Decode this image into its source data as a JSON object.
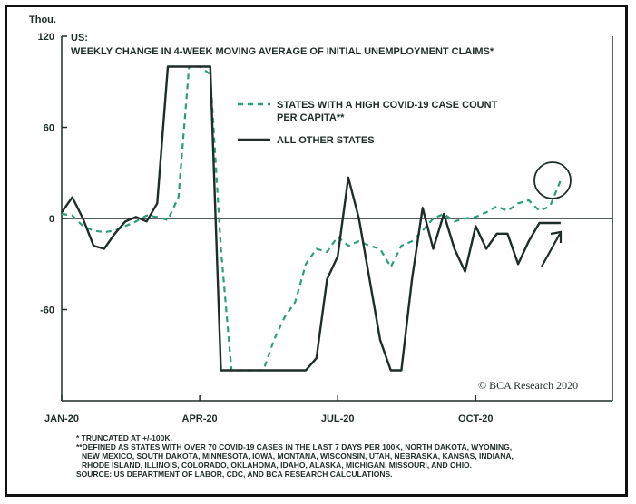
{
  "chart_data": {
    "type": "line",
    "title": "US:",
    "subtitle": "WEEKLY CHANGE IN 4-WEEK MOVING AVERAGE OF INITIAL UNEMPLOYMENT CLAIMS*",
    "ylabel": "Thou.",
    "ylim": [
      -120,
      120
    ],
    "yticks": [
      120,
      60,
      0,
      -60
    ],
    "ytick_labels": [
      "120",
      "60",
      "0",
      "-60"
    ],
    "xlim": [
      0,
      49
    ],
    "xticks": [
      {
        "x": 0,
        "label": "JAN-20"
      },
      {
        "x": 13,
        "label": "APR-20"
      },
      {
        "x": 26,
        "label": "JUL-20"
      },
      {
        "x": 39,
        "label": "OCT-20"
      }
    ],
    "legend_position": "top-right",
    "series": [
      {
        "name": "STATES WITH A HIGH COVID-19 CASE COUNT PER CAPITA**",
        "style": "dashed",
        "color": "#2a9d7c",
        "x": [
          0,
          1,
          2,
          3,
          4,
          5,
          6,
          7,
          8,
          9,
          10,
          11,
          12,
          13,
          14,
          15,
          16,
          17,
          18,
          19,
          20,
          21,
          22,
          23,
          24,
          25,
          26,
          27,
          28,
          29,
          30,
          31,
          32,
          33,
          34,
          35,
          36,
          37,
          38,
          39,
          40,
          41,
          42,
          43,
          44,
          45,
          46,
          47
        ],
        "values": [
          3,
          2,
          -5,
          -8,
          -9,
          -8,
          -5,
          -2,
          2,
          1,
          -1,
          14,
          100,
          100,
          95,
          -20,
          -100,
          -100,
          -100,
          -100,
          -80,
          -65,
          -55,
          -30,
          -20,
          -22,
          -12,
          -18,
          -15,
          -18,
          -20,
          -32,
          -18,
          -15,
          -8,
          0,
          3,
          -2,
          0,
          1,
          4,
          8,
          5,
          10,
          12,
          5,
          8,
          25
        ]
      },
      {
        "name": "ALL OTHER STATES",
        "style": "solid",
        "color": "#1f2d2a",
        "x": [
          0,
          1,
          2,
          3,
          4,
          5,
          6,
          7,
          8,
          9,
          10,
          11,
          12,
          13,
          14,
          15,
          16,
          17,
          18,
          19,
          20,
          21,
          22,
          23,
          24,
          25,
          26,
          27,
          28,
          29,
          30,
          31,
          32,
          33,
          34,
          35,
          36,
          37,
          38,
          39,
          40,
          41,
          42,
          43,
          44,
          45,
          46,
          47
        ],
        "values": [
          4,
          14,
          0,
          -18,
          -20,
          -10,
          -2,
          1,
          -2,
          10,
          100,
          100,
          100,
          100,
          100,
          -100,
          -100,
          -100,
          -100,
          -100,
          -100,
          -100,
          -100,
          -100,
          -92,
          -40,
          -25,
          27,
          0,
          -40,
          -80,
          -100,
          -100,
          -40,
          7,
          -20,
          3,
          -20,
          -35,
          -5,
          -20,
          -10,
          -10,
          -30,
          -15,
          -3,
          -3,
          -3
        ]
      }
    ],
    "annotations": [
      "TRUNCATED AT +/-100K. (circle highlight on latest high-COVID reading; arrow on latest reading)"
    ]
  },
  "credit": "© BCA Research 2020",
  "footnotes": [
    "* TRUNCATED AT +/-100K.",
    "**DEFINED AS STATES WITH OVER 70 COVID-19 CASES IN THE LAST 7 DAYS PER 100K, NORTH DAKOTA, WYOMING,",
    "NEW MEXICO, SOUTH DAKOTA, MINNESOTA, IOWA, MONTANA, WISCONSIN, UTAH, NEBRASKA, KANSAS, INDIANA,",
    "RHODE ISLAND, ILLINOIS, COLORADO, OKLAHOMA, IDAHO, ALASKA, MICHIGAN, MISSOURI, AND OHIO.",
    "SOURCE: US DEPARTMENT OF LABOR, CDC, AND BCA RESEARCH CALCULATIONS."
  ],
  "legend_lines": [
    [
      "STATES WITH A HIGH COVID-19 CASE COUNT",
      "PER CAPITA**"
    ],
    [
      "ALL OTHER STATES"
    ]
  ]
}
